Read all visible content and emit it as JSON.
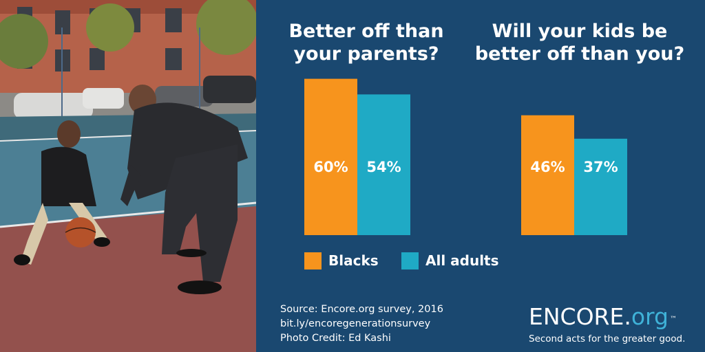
{
  "colors": {
    "background": "#1a4870",
    "blacks": "#f7941d",
    "all_adults": "#1faac5",
    "logo_accent": "#3fb2d8",
    "text": "#ffffff"
  },
  "chart_data": [
    {
      "type": "bar",
      "title": "Better off than\nyour parents?",
      "categories": [
        "Blacks",
        "All adults"
      ],
      "values": [
        60,
        54
      ],
      "labels": [
        "60%",
        "54%"
      ],
      "unit": "%"
    },
    {
      "type": "bar",
      "title": "Will your kids be\nbetter off than you?",
      "categories": [
        "Blacks",
        "All adults"
      ],
      "values": [
        46,
        37
      ],
      "labels": [
        "46%",
        "37%"
      ],
      "unit": "%"
    }
  ],
  "legend": [
    {
      "label": "Blacks",
      "color": "#f7941d"
    },
    {
      "label": "All adults",
      "color": "#1faac5"
    }
  ],
  "source": {
    "line1": "Source: Encore.org survey, 2016",
    "line2": "bit.ly/encoregenerationsurvey",
    "line3": "Photo Credit: Ed Kashi"
  },
  "logo": {
    "word": "ENCORE.",
    "suffix": "org",
    "tm": "™",
    "tagline": "Second acts for the greater good."
  },
  "photo": {
    "subject": "man and child playing basketball on outdoor court"
  }
}
